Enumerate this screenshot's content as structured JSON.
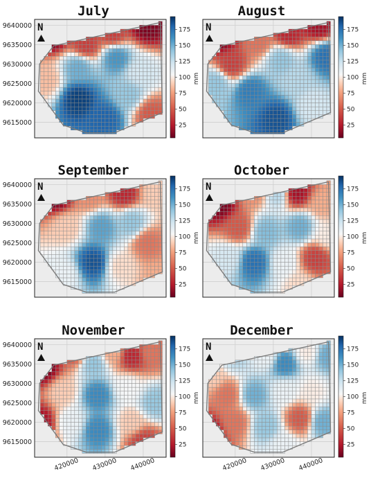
{
  "chart_data": {
    "type": "heatmap",
    "colormap": "RdBu",
    "colorbar_label": "mm",
    "colorbar_ticks": [
      25,
      50,
      75,
      100,
      125,
      150,
      175
    ],
    "color_range": [
      5,
      195
    ],
    "north_arrow_label": "N",
    "x_ticks": [
      "420000",
      "430000",
      "440000"
    ],
    "x_tick_values": [
      420000,
      430000,
      440000
    ],
    "y_ticks": [
      "9640000",
      "9635000",
      "9630000",
      "9625000",
      "9620000",
      "9615000"
    ],
    "y_tick_values": [
      9640000,
      9635000,
      9630000,
      9625000,
      9620000,
      9615000
    ],
    "xlim": [
      411500,
      446000
    ],
    "ylim": [
      9611000,
      9641500
    ],
    "cell_size": 1000,
    "boundary": [
      [
        416500,
        9634700
      ],
      [
        444500,
        9640700
      ],
      [
        445000,
        9617500
      ],
      [
        432500,
        9612300
      ],
      [
        425000,
        9612300
      ],
      [
        419000,
        9614300
      ],
      [
        412500,
        9623000
      ],
      [
        412800,
        9630000
      ]
    ],
    "panels": [
      {
        "title": "July",
        "centers": [
          [
            416000,
            9637500,
            10
          ],
          [
            425000,
            9635000,
            40
          ],
          [
            432000,
            9638000,
            40
          ],
          [
            441000,
            9640000,
            10
          ],
          [
            433000,
            9631500,
            160
          ],
          [
            423000,
            9629000,
            150
          ],
          [
            439000,
            9628000,
            120
          ],
          [
            423000,
            9621000,
            190
          ],
          [
            430000,
            9616000,
            180
          ],
          [
            442000,
            9617000,
            50
          ],
          [
            414500,
            9626000,
            85
          ],
          [
            436000,
            9622000,
            140
          ]
        ]
      },
      {
        "title": "August",
        "centers": [
          [
            416000,
            9637000,
            10
          ],
          [
            426000,
            9636000,
            60
          ],
          [
            434000,
            9638000,
            30
          ],
          [
            442000,
            9640000,
            20
          ],
          [
            419000,
            9630000,
            40
          ],
          [
            432000,
            9631000,
            140
          ],
          [
            444000,
            9632000,
            175
          ],
          [
            424000,
            9623000,
            170
          ],
          [
            431000,
            9616000,
            185
          ],
          [
            440000,
            9619000,
            120
          ],
          [
            436000,
            9626000,
            130
          ],
          [
            415000,
            9625000,
            140
          ]
        ]
      },
      {
        "title": "September",
        "centers": [
          [
            417000,
            9637000,
            10
          ],
          [
            426000,
            9637000,
            70
          ],
          [
            435000,
            9638000,
            30
          ],
          [
            443000,
            9638000,
            90
          ],
          [
            420000,
            9629000,
            90
          ],
          [
            429000,
            9629000,
            155
          ],
          [
            437000,
            9630000,
            140
          ],
          [
            441000,
            9625000,
            60
          ],
          [
            427000,
            9620000,
            185
          ],
          [
            434000,
            9619000,
            95
          ],
          [
            419000,
            9617000,
            110
          ],
          [
            444000,
            9616000,
            80
          ]
        ]
      },
      {
        "title": "October",
        "centers": [
          [
            416000,
            9635000,
            10
          ],
          [
            425000,
            9638000,
            70
          ],
          [
            431000,
            9637500,
            130
          ],
          [
            436000,
            9638000,
            20
          ],
          [
            443000,
            9635000,
            80
          ],
          [
            421000,
            9629000,
            50
          ],
          [
            428000,
            9628000,
            145
          ],
          [
            437000,
            9629000,
            150
          ],
          [
            444000,
            9627000,
            100
          ],
          [
            425000,
            9620000,
            175
          ],
          [
            433000,
            9620000,
            110
          ],
          [
            441000,
            9621000,
            40
          ],
          [
            418000,
            9621000,
            120
          ],
          [
            437000,
            9614000,
            95
          ]
        ]
      },
      {
        "title": "November",
        "centers": [
          [
            414000,
            9634000,
            10
          ],
          [
            422000,
            9638000,
            50
          ],
          [
            427000,
            9635000,
            140
          ],
          [
            432000,
            9638000,
            80
          ],
          [
            437000,
            9637000,
            30
          ],
          [
            442000,
            9638000,
            60
          ],
          [
            419000,
            9628000,
            90
          ],
          [
            428000,
            9627000,
            165
          ],
          [
            436000,
            9629000,
            105
          ],
          [
            443000,
            9625000,
            140
          ],
          [
            413000,
            9620000,
            20
          ],
          [
            421000,
            9620000,
            110
          ],
          [
            428000,
            9618000,
            165
          ],
          [
            437000,
            9620000,
            90
          ],
          [
            440000,
            9615000,
            40
          ]
        ]
      },
      {
        "title": "December",
        "centers": [
          [
            414000,
            9632000,
            90
          ],
          [
            420000,
            9637000,
            130
          ],
          [
            428000,
            9637000,
            110
          ],
          [
            433000,
            9635000,
            165
          ],
          [
            439000,
            9638000,
            100
          ],
          [
            444000,
            9637000,
            150
          ],
          [
            418000,
            9627000,
            60
          ],
          [
            425000,
            9627000,
            150
          ],
          [
            433000,
            9628000,
            110
          ],
          [
            440000,
            9628000,
            100
          ],
          [
            413000,
            9617000,
            15
          ],
          [
            420000,
            9620000,
            60
          ],
          [
            428000,
            9619000,
            140
          ],
          [
            437000,
            9621000,
            50
          ],
          [
            443000,
            9620000,
            150
          ],
          [
            433000,
            9614000,
            110
          ]
        ]
      }
    ]
  }
}
